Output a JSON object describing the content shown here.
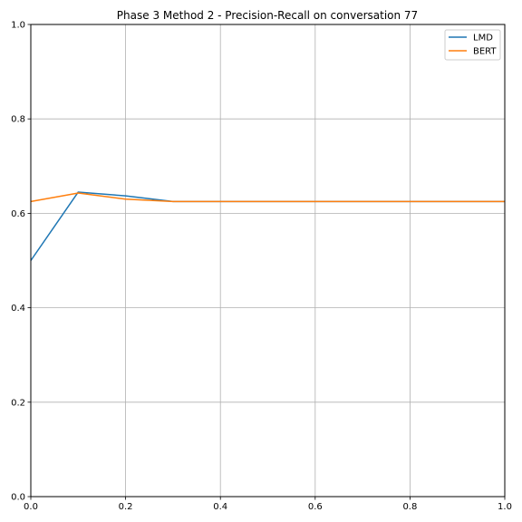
{
  "chart_data": {
    "type": "line",
    "title": "Phase 3 Method 2 - Precision-Recall on conversation 77",
    "xlabel": "",
    "ylabel": "",
    "xlim": [
      0,
      1
    ],
    "ylim": [
      0,
      1
    ],
    "xticks": [
      "0.0",
      "0.2",
      "0.4",
      "0.6",
      "0.8",
      "1.0"
    ],
    "yticks": [
      "0.0",
      "0.2",
      "0.4",
      "0.6",
      "0.8",
      "1.0"
    ],
    "grid": true,
    "legend_position": "top-right",
    "series": [
      {
        "name": "LMD",
        "color": "#1f77b4",
        "x": [
          0.0,
          0.1,
          0.2,
          0.3,
          0.4,
          0.5,
          0.6,
          0.7,
          0.8,
          0.9,
          1.0
        ],
        "y": [
          0.5,
          0.645,
          0.637,
          0.625,
          0.625,
          0.625,
          0.625,
          0.625,
          0.625,
          0.625,
          0.625
        ]
      },
      {
        "name": "BERT",
        "color": "#ff7f0e",
        "x": [
          0.0,
          0.1,
          0.2,
          0.3,
          0.4,
          0.5,
          0.6,
          0.7,
          0.8,
          0.9,
          1.0
        ],
        "y": [
          0.625,
          0.643,
          0.63,
          0.625,
          0.625,
          0.625,
          0.625,
          0.625,
          0.625,
          0.625,
          0.625
        ]
      }
    ]
  }
}
